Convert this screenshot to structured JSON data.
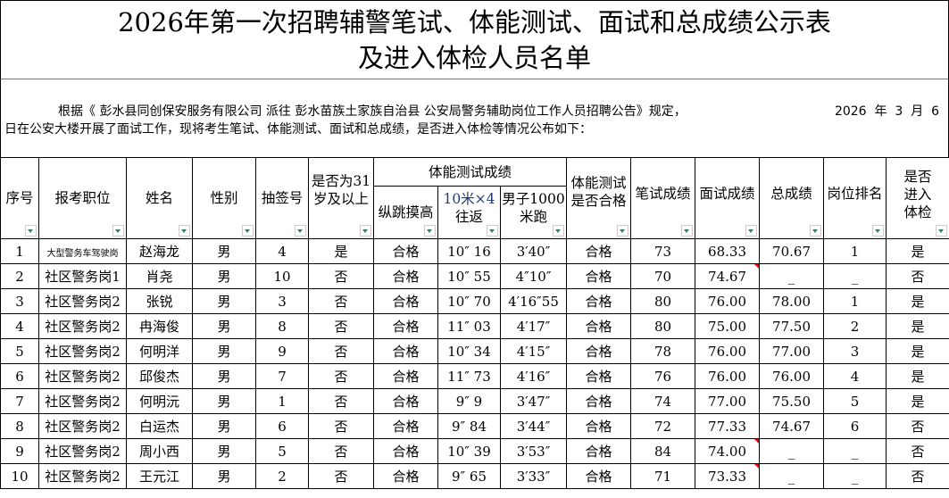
{
  "title": {
    "line1": "2026年第一次招聘辅警笔试、体能测试、面试和总成绩公示表",
    "line2": "及进入体检人员名单"
  },
  "intro": {
    "part1": "根据《 彭水县同创保安服务有限公司 派往 彭水苗族土家族自治县 公安局警务辅助岗位工作人员招聘公告》规定，",
    "date": "2026  年  3  月  6",
    "part2": "日在公安大楼开展了面试工作，现将考生笔试、体能测试、面试和总成绩，是否进入体检等情况公布如下："
  },
  "headers": {
    "seq": "序号",
    "position": "报考职位",
    "name": "姓名",
    "gender": "性别",
    "lot": "抽签号",
    "over31_a": "是否为31",
    "over31_b": "岁及以上",
    "fitness_group": "体能测试成绩",
    "jump": "纵跳摸高",
    "shuttle_a": "10米×4",
    "shuttle_b": "往返",
    "run_a": "男子1000",
    "run_b": "米跑",
    "fitness_pass_a": "体能测试",
    "fitness_pass_b": "是否合格",
    "written": "笔试成绩",
    "interview": "面试成绩",
    "total": "总成绩",
    "rank": "岗位排名",
    "exam_a": "是否",
    "exam_b": "进入",
    "exam_c": "体检"
  },
  "rows": [
    {
      "seq": "1",
      "position": "大型警务车驾驶岗",
      "name": "赵海龙",
      "gender": "男",
      "lot": "4",
      "over31": "是",
      "jump": "合格",
      "shuttle": "10″ 16",
      "run": "3′40″",
      "pass": "合格",
      "written": "73",
      "interview": "68.33",
      "total": "70.67",
      "rank": "1",
      "exam": "是"
    },
    {
      "seq": "2",
      "position": "社区警务岗1",
      "name": "肖尧",
      "gender": "男",
      "lot": "10",
      "over31": "否",
      "jump": "合格",
      "shuttle": "10″ 55",
      "run": "4″10″",
      "pass": "合格",
      "written": "70",
      "interview": "74.67",
      "total": "_",
      "rank": "_",
      "exam": "否"
    },
    {
      "seq": "3",
      "position": "社区警务岗2",
      "name": "张锐",
      "gender": "男",
      "lot": "3",
      "over31": "否",
      "jump": "合格",
      "shuttle": "10″ 70",
      "run": "4′16″55",
      "pass": "合格",
      "written": "80",
      "interview": "76.00",
      "total": "78.00",
      "rank": "1",
      "exam": "是"
    },
    {
      "seq": "4",
      "position": "社区警务岗2",
      "name": "冉海俊",
      "gender": "男",
      "lot": "8",
      "over31": "否",
      "jump": "合格",
      "shuttle": "11″ 03",
      "run": "4′17″",
      "pass": "合格",
      "written": "80",
      "interview": "75.00",
      "total": "77.50",
      "rank": "2",
      "exam": "是"
    },
    {
      "seq": "5",
      "position": "社区警务岗2",
      "name": "何明洋",
      "gender": "男",
      "lot": "9",
      "over31": "否",
      "jump": "合格",
      "shuttle": "10″ 34",
      "run": "4′15″",
      "pass": "合格",
      "written": "78",
      "interview": "76.00",
      "total": "77.00",
      "rank": "3",
      "exam": "是"
    },
    {
      "seq": "6",
      "position": "社区警务岗2",
      "name": "邱俊杰",
      "gender": "男",
      "lot": "7",
      "over31": "否",
      "jump": "合格",
      "shuttle": "11″ 73",
      "run": "4′16″",
      "pass": "合格",
      "written": "76",
      "interview": "76.00",
      "total": "76.00",
      "rank": "4",
      "exam": "是"
    },
    {
      "seq": "7",
      "position": "社区警务岗2",
      "name": "何明沅",
      "gender": "男",
      "lot": "1",
      "over31": "否",
      "jump": "合格",
      "shuttle": "9″ 9",
      "run": "3′47″",
      "pass": "合格",
      "written": "74",
      "interview": "77.00",
      "total": "75.50",
      "rank": "5",
      "exam": "是"
    },
    {
      "seq": "8",
      "position": "社区警务岗2",
      "name": "白运杰",
      "gender": "男",
      "lot": "6",
      "over31": "否",
      "jump": "合格",
      "shuttle": "9″ 84",
      "run": "3′44″",
      "pass": "合格",
      "written": "72",
      "interview": "77.33",
      "total": "74.67",
      "rank": "6",
      "exam": "否"
    },
    {
      "seq": "9",
      "position": "社区警务岗2",
      "name": "周小西",
      "gender": "男",
      "lot": "5",
      "over31": "否",
      "jump": "合格",
      "shuttle": "10″ 39",
      "run": "3′53″",
      "pass": "合格",
      "written": "84",
      "interview": "74.00",
      "total": "_",
      "rank": "_",
      "exam": "否"
    },
    {
      "seq": "10",
      "position": "社区警务岗2",
      "name": "王元江",
      "gender": "男",
      "lot": "2",
      "over31": "否",
      "jump": "合格",
      "shuttle": "9″ 65",
      "run": "3′33″",
      "pass": "合格",
      "written": "71",
      "interview": "73.33",
      "total": "_",
      "rank": "_",
      "exam": "否"
    }
  ],
  "colors": {
    "filter_arrow": "#1a8f5a",
    "comment_marker": "#e00000"
  }
}
